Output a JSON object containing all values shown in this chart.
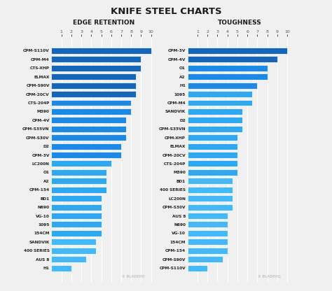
{
  "title": "KNIFE STEEL CHARTS",
  "title_fontsize": 9.5,
  "bg_color": "#f0f0f0",
  "watermark": "BLADEHQ",
  "left_title": "EDGE RETENTION",
  "left_labels": [
    "CPM-S110V",
    "CPM-M4",
    "CTS-XHP",
    "ELMAX",
    "CPM-S90V",
    "CPM-20CV",
    "CTS-204P",
    "M390",
    "CPM-4V",
    "CPM-S35VN",
    "CPM-S30V",
    "D2",
    "CPM-3V",
    "LC200N",
    "O1",
    "A2",
    "CPM-154",
    "BD1",
    "N690",
    "VG-10",
    "1095",
    "154CM",
    "SANDVIK",
    "400 SERIES",
    "AUS 8",
    "H1"
  ],
  "left_values": [
    10,
    9,
    9,
    8.5,
    8.5,
    8.5,
    8,
    8,
    7.5,
    7.5,
    7.5,
    7,
    7,
    6,
    5.5,
    5.5,
    5.5,
    5,
    5,
    5,
    5,
    5,
    4.5,
    4.5,
    3.5,
    2
  ],
  "right_title": "TOUGHNESS",
  "right_labels": [
    "CPM-3V",
    "CPM-4V",
    "O1",
    "A2",
    "H1",
    "1095",
    "CPM-M4",
    "SANDVIK",
    "D2",
    "CPM-S35VN",
    "CPM-XHP",
    "ELMAX",
    "CPM-20CV",
    "CTS-204P",
    "M390",
    "BD1",
    "400 SERIES",
    "LC200N",
    "CPM-S30V",
    "AUS 8",
    "N690",
    "VG-10",
    "154CM",
    "CPM-154",
    "CPM-S90V",
    "CPM-S110V"
  ],
  "right_values": [
    10,
    9,
    8,
    8,
    7,
    6.5,
    6.5,
    5.5,
    5.5,
    5.5,
    5,
    5,
    5,
    5,
    5,
    4.5,
    4.5,
    4.5,
    4.5,
    4,
    4,
    4,
    4,
    4,
    3.5,
    2
  ],
  "color_top": "#1a6fba",
  "color_mid": "#2196e8",
  "color_low": "#55b5f5",
  "tick_label_color": "#555555",
  "label_color": "#222222"
}
